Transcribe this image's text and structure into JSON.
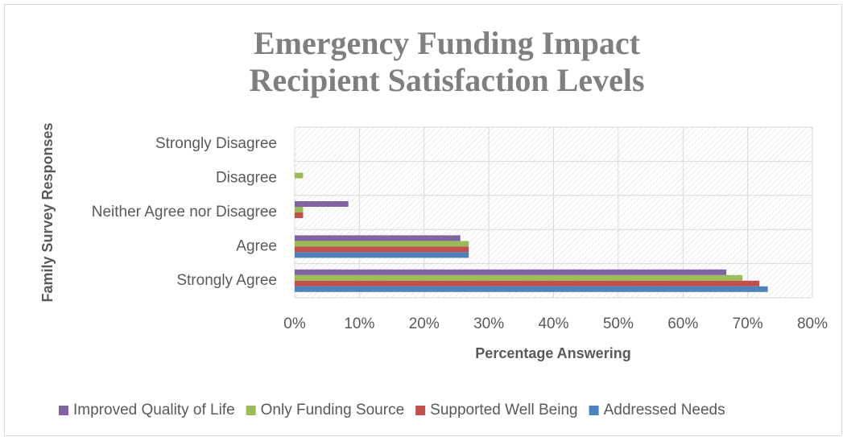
{
  "chart_data": {
    "type": "bar",
    "orientation": "horizontal",
    "title": [
      "Emergency Funding Impact",
      "Recipient Satisfaction Levels"
    ],
    "x_label": "Percentage Answering",
    "y_label": "Family Survey Responses",
    "categories": [
      "Strongly Agree",
      "Agree",
      "Neither Agree nor Disagree",
      "Disagree",
      "Strongly Disagree"
    ],
    "series": [
      {
        "name": "Improved Quality of Life",
        "color": "#8064a2",
        "values": [
          66.7,
          25.6,
          8.3,
          0,
          0
        ]
      },
      {
        "name": "Only Funding Source",
        "color": "#9bbb59",
        "values": [
          69.2,
          26.9,
          1.3,
          1.3,
          0
        ]
      },
      {
        "name": "Supported Well Being",
        "color": "#c0504d",
        "values": [
          71.8,
          26.9,
          1.3,
          0,
          0
        ]
      },
      {
        "name": "Addressed Needs",
        "color": "#4f81bd",
        "values": [
          73.1,
          26.9,
          0,
          0,
          0
        ]
      }
    ],
    "xlim": [
      0,
      80
    ],
    "xticks": [
      {
        "value": 0,
        "label": "0%"
      },
      {
        "value": 10,
        "label": "10%"
      },
      {
        "value": 20,
        "label": "20%"
      },
      {
        "value": 30,
        "label": "30%"
      },
      {
        "value": 40,
        "label": "40%"
      },
      {
        "value": 50,
        "label": "50%"
      },
      {
        "value": 60,
        "label": "60%"
      },
      {
        "value": 70,
        "label": "70%"
      },
      {
        "value": 80,
        "label": "80%"
      }
    ],
    "grid": true,
    "legend": "bottom"
  }
}
